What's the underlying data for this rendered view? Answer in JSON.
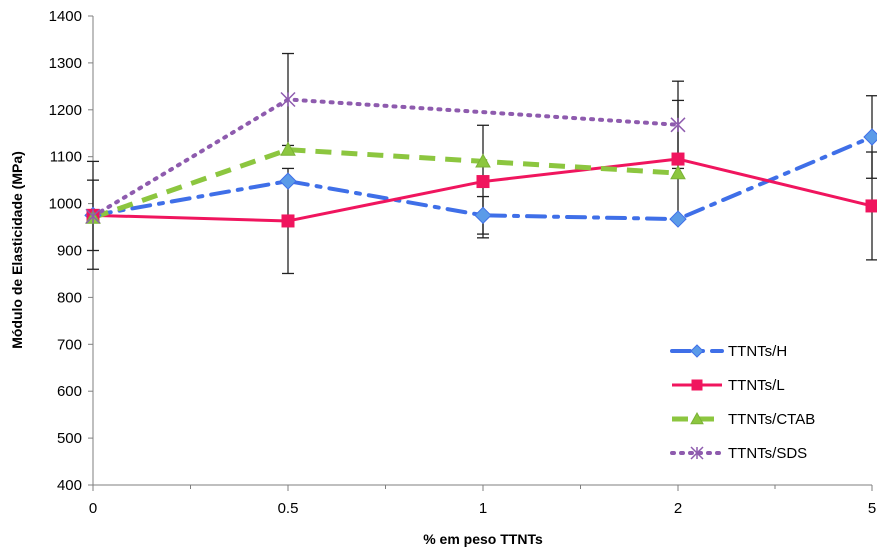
{
  "chart_data": {
    "type": "line",
    "title": "",
    "xlabel": "% em peso TTNTs",
    "ylabel": "Módulo de Elasticidade (MPa)",
    "categories": [
      "0",
      "0.5",
      "1",
      "2",
      "5"
    ],
    "ylim": [
      400,
      1400
    ],
    "yticks": [
      400,
      500,
      600,
      700,
      800,
      900,
      1000,
      1100,
      1200,
      1300,
      1400
    ],
    "grid": false,
    "legend_position": "bottom-right",
    "series": [
      {
        "name": "TTNTs/H",
        "color": "#3F6FE8",
        "line_style": "dash-dot",
        "marker": "diamond",
        "values": [
          975,
          1048,
          975,
          967,
          1142
        ],
        "error": [
          75,
          0,
          40,
          0,
          88
        ]
      },
      {
        "name": "TTNTs/L",
        "color": "#F0155E",
        "line_style": "solid",
        "marker": "square",
        "values": [
          975,
          963,
          1047,
          1095,
          995
        ],
        "error": [
          115,
          112,
          120,
          125,
          115
        ]
      },
      {
        "name": "TTNTs/CTAB",
        "color": "#8CC63F",
        "line_style": "dashed",
        "marker": "triangle",
        "values": [
          970,
          1115,
          1090,
          1065,
          null
        ],
        "error": [
          0,
          0,
          0,
          0,
          null
        ]
      },
      {
        "name": "TTNTs/SDS",
        "color": "#8E5BAE",
        "line_style": "dotted",
        "marker": "star",
        "values": [
          973,
          1222,
          null,
          1168,
          null
        ],
        "error": [
          0,
          98,
          null,
          93,
          null
        ]
      }
    ]
  }
}
